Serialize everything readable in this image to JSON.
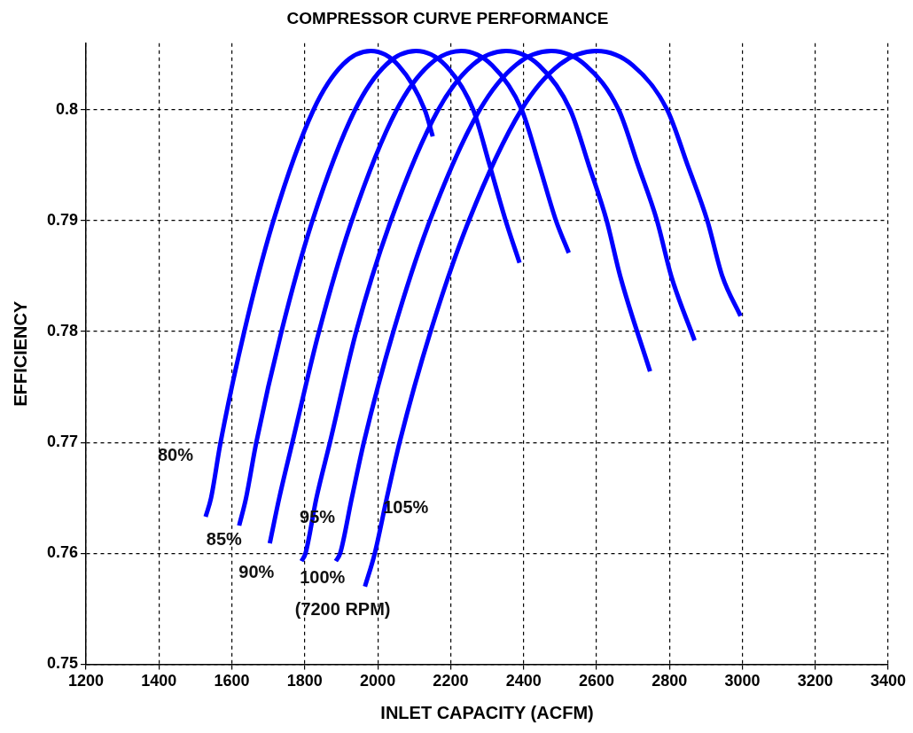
{
  "chart_data": {
    "type": "line",
    "title": "COMPRESSOR CURVE PERFORMANCE",
    "xlabel": "INLET CAPACITY (ACFM)",
    "ylabel": "EFFICIENCY",
    "xlim": [
      1200,
      3400
    ],
    "xticks": [
      1200,
      1400,
      1600,
      1800,
      2000,
      2200,
      2400,
      2600,
      2800,
      3000,
      3200,
      3400
    ],
    "ylim": [
      0.75,
      0.806
    ],
    "yticks": [
      0.75,
      0.76,
      0.77,
      0.78,
      0.79,
      0.8
    ],
    "grid": true,
    "legend": false,
    "marker": "none",
    "line_style": "solid",
    "series": [
      {
        "name": "80%",
        "color": "#0000ff",
        "x": [
          1528,
          1543,
          1569,
          1634,
          1714,
          1824,
          1905,
          1981,
          2057,
          2129,
          2151
        ],
        "values": [
          0.7633,
          0.765,
          0.77,
          0.78,
          0.79,
          0.8,
          0.8041,
          0.8053,
          0.804,
          0.8,
          0.7976
        ]
      },
      {
        "name": "85%",
        "color": "#0000ff",
        "x": [
          1620,
          1639,
          1667,
          1736,
          1821,
          1938,
          2024,
          2105,
          2186,
          2262,
          2307,
          2351,
          2389
        ],
        "values": [
          0.7625,
          0.765,
          0.77,
          0.78,
          0.79,
          0.8,
          0.8041,
          0.8053,
          0.804,
          0.8,
          0.795,
          0.79,
          0.7862
        ]
      },
      {
        "name": "90%",
        "color": "#0000ff",
        "x": [
          1704,
          1730,
          1766,
          1839,
          1929,
          2052,
          2143,
          2229,
          2314,
          2395,
          2443,
          2489,
          2524
        ],
        "values": [
          0.7609,
          0.765,
          0.77,
          0.78,
          0.79,
          0.8,
          0.8041,
          0.8053,
          0.804,
          0.8,
          0.795,
          0.79,
          0.7871
        ]
      },
      {
        "name": "95%",
        "color": "#0000ff",
        "x": [
          1791,
          1802,
          1832,
          1869,
          1941,
          2036,
          2166,
          2262,
          2352,
          2443,
          2528,
          2579,
          2628,
          2665,
          2747
        ],
        "values": [
          0.7593,
          0.76,
          0.765,
          0.77,
          0.78,
          0.79,
          0.8,
          0.8041,
          0.8053,
          0.804,
          0.8,
          0.795,
          0.79,
          0.785,
          0.7764
        ]
      },
      {
        "name": "100%",
        "color": "#0000ff",
        "x": [
          1885,
          1897,
          1929,
          1962,
          2043,
          2143,
          2280,
          2381,
          2476,
          2571,
          2661,
          2714,
          2766,
          2805,
          2869
        ],
        "values": [
          0.7593,
          0.76,
          0.765,
          0.77,
          0.78,
          0.79,
          0.8,
          0.8041,
          0.8053,
          0.804,
          0.8,
          0.795,
          0.79,
          0.785,
          0.7792
        ]
      },
      {
        "name": "105%",
        "color": "#0000ff",
        "x": [
          1965,
          1992,
          2025,
          2060,
          2145,
          2250,
          2394,
          2500,
          2600,
          2700,
          2794,
          2850,
          2904,
          2945,
          2995
        ],
        "values": [
          0.757,
          0.76,
          0.765,
          0.77,
          0.78,
          0.79,
          0.8,
          0.8041,
          0.8053,
          0.804,
          0.8,
          0.795,
          0.79,
          0.785,
          0.7814
        ]
      }
    ],
    "annotations": [
      "(7200 RPM)"
    ]
  }
}
